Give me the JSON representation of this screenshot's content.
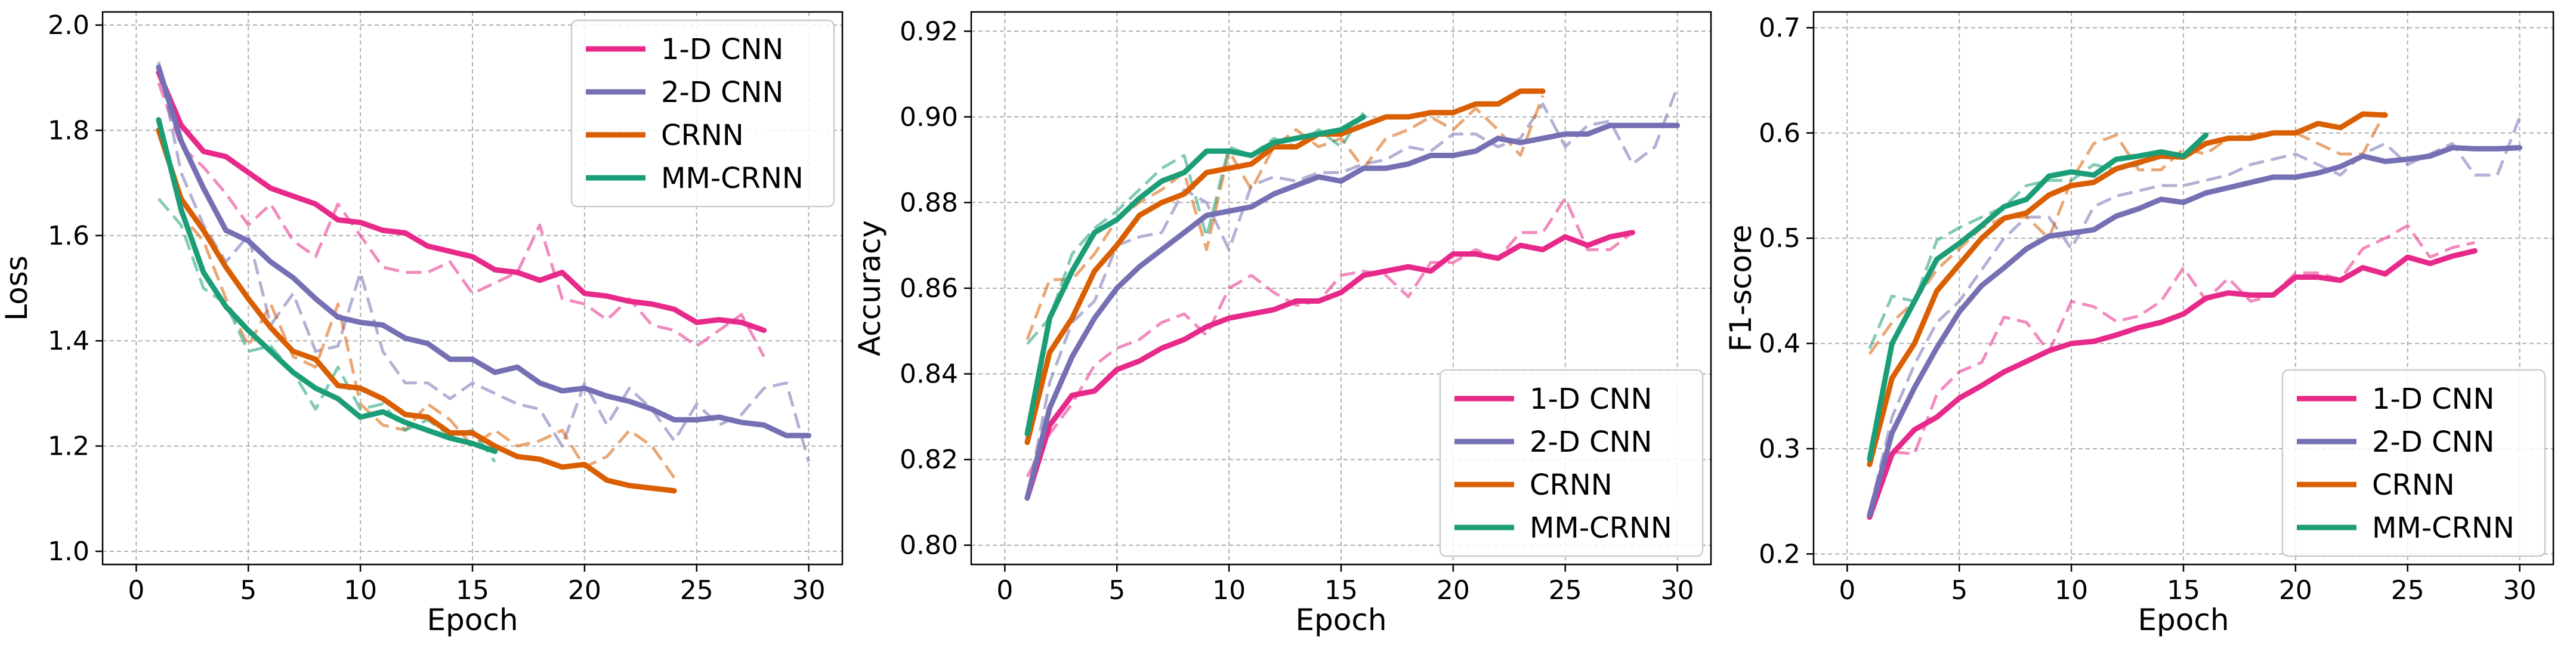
{
  "chart_data": [
    {
      "type": "line",
      "xlabel": "Epoch",
      "ylabel": "Loss",
      "xlim": [
        -1.5,
        31.5
      ],
      "ylim": [
        0.975,
        2.025
      ],
      "xticks": [
        0,
        5,
        10,
        15,
        20,
        25,
        30
      ],
      "yticks": [
        1.0,
        1.2,
        1.4,
        1.6,
        1.8,
        2.0
      ],
      "ytick_labels": [
        "1.0",
        "1.2",
        "1.4",
        "1.6",
        "1.8",
        "2.0"
      ],
      "grid": true,
      "legend_position": "upper-right",
      "series": [
        {
          "name": "1-D CNN",
          "color": "#e7298a",
          "style": "smoothed-solid",
          "values": [
            1.91,
            1.81,
            1.76,
            1.75,
            1.72,
            1.69,
            1.675,
            1.66,
            1.63,
            1.625,
            1.61,
            1.605,
            1.58,
            1.57,
            1.56,
            1.535,
            1.53,
            1.515,
            1.53,
            1.49,
            1.485,
            1.475,
            1.47,
            1.46,
            1.435,
            1.44,
            1.435,
            1.42
          ]
        },
        {
          "name": "1-D CNN raw",
          "color": "#e7298a",
          "style": "raw-dashed",
          "values": [
            1.89,
            1.77,
            1.73,
            1.68,
            1.62,
            1.66,
            1.59,
            1.56,
            1.66,
            1.6,
            1.54,
            1.53,
            1.53,
            1.55,
            1.49,
            1.51,
            1.53,
            1.62,
            1.48,
            1.47,
            1.44,
            1.48,
            1.43,
            1.42,
            1.39,
            1.42,
            1.45,
            1.37
          ]
        },
        {
          "name": "2-D CNN",
          "color": "#7570b3",
          "style": "smoothed-solid",
          "values": [
            1.92,
            1.78,
            1.69,
            1.61,
            1.59,
            1.55,
            1.52,
            1.48,
            1.445,
            1.435,
            1.43,
            1.405,
            1.395,
            1.365,
            1.365,
            1.34,
            1.35,
            1.32,
            1.305,
            1.31,
            1.295,
            1.285,
            1.27,
            1.25,
            1.25,
            1.255,
            1.245,
            1.24,
            1.22,
            1.22
          ]
        },
        {
          "name": "2-D CNN raw",
          "color": "#7570b3",
          "style": "raw-dashed",
          "values": [
            1.93,
            1.72,
            1.62,
            1.55,
            1.6,
            1.43,
            1.49,
            1.38,
            1.39,
            1.53,
            1.38,
            1.32,
            1.32,
            1.29,
            1.32,
            1.3,
            1.28,
            1.27,
            1.2,
            1.32,
            1.24,
            1.31,
            1.27,
            1.21,
            1.28,
            1.24,
            1.26,
            1.31,
            1.32,
            1.17
          ]
        },
        {
          "name": "CRNN",
          "color": "#d95f02",
          "style": "smoothed-solid",
          "values": [
            1.8,
            1.67,
            1.61,
            1.54,
            1.48,
            1.425,
            1.38,
            1.365,
            1.315,
            1.31,
            1.29,
            1.26,
            1.255,
            1.225,
            1.225,
            1.2,
            1.18,
            1.175,
            1.16,
            1.165,
            1.135,
            1.125,
            1.12,
            1.115
          ]
        },
        {
          "name": "CRNN raw",
          "color": "#d95f02",
          "style": "raw-dashed",
          "values": [
            1.82,
            1.64,
            1.59,
            1.48,
            1.39,
            1.47,
            1.37,
            1.35,
            1.47,
            1.28,
            1.24,
            1.23,
            1.28,
            1.25,
            1.2,
            1.23,
            1.2,
            1.21,
            1.23,
            1.16,
            1.18,
            1.23,
            1.2,
            1.14
          ]
        },
        {
          "name": "MM-CRNN",
          "color": "#1b9e77",
          "style": "smoothed-solid",
          "values": [
            1.82,
            1.65,
            1.53,
            1.465,
            1.42,
            1.38,
            1.34,
            1.31,
            1.29,
            1.255,
            1.265,
            1.245,
            1.23,
            1.215,
            1.205,
            1.19
          ]
        },
        {
          "name": "MM-CRNN raw",
          "color": "#1b9e77",
          "style": "raw-dashed",
          "values": [
            1.67,
            1.62,
            1.5,
            1.47,
            1.38,
            1.39,
            1.34,
            1.27,
            1.35,
            1.27,
            1.28,
            1.23,
            1.25,
            1.22,
            1.23,
            1.17
          ]
        }
      ]
    },
    {
      "type": "line",
      "xlabel": "Epoch",
      "ylabel": "Accuracy",
      "xlim": [
        -1.5,
        31.5
      ],
      "ylim": [
        0.7955,
        0.9245
      ],
      "xticks": [
        0,
        5,
        10,
        15,
        20,
        25,
        30
      ],
      "yticks": [
        0.8,
        0.82,
        0.84,
        0.86,
        0.88,
        0.9,
        0.92
      ],
      "ytick_labels": [
        "0.80",
        "0.82",
        "0.84",
        "0.86",
        "0.88",
        "0.90",
        "0.92"
      ],
      "grid": true,
      "legend_position": "lower-right",
      "series": [
        {
          "name": "1-D CNN",
          "color": "#e7298a",
          "style": "smoothed-solid",
          "values": [
            0.811,
            0.828,
            0.835,
            0.836,
            0.841,
            0.843,
            0.846,
            0.848,
            0.851,
            0.853,
            0.854,
            0.855,
            0.857,
            0.857,
            0.859,
            0.863,
            0.864,
            0.865,
            0.864,
            0.868,
            0.868,
            0.867,
            0.87,
            0.869,
            0.872,
            0.87,
            0.872,
            0.873
          ]
        },
        {
          "name": "1-D CNN raw",
          "color": "#e7298a",
          "style": "raw-dashed",
          "values": [
            0.816,
            0.826,
            0.833,
            0.842,
            0.846,
            0.848,
            0.852,
            0.854,
            0.849,
            0.86,
            0.863,
            0.859,
            0.856,
            0.857,
            0.863,
            0.864,
            0.863,
            0.858,
            0.866,
            0.866,
            0.869,
            0.867,
            0.873,
            0.873,
            0.881,
            0.869,
            0.869,
            0.873
          ]
        },
        {
          "name": "2-D CNN",
          "color": "#7570b3",
          "style": "smoothed-solid",
          "values": [
            0.811,
            0.832,
            0.844,
            0.853,
            0.86,
            0.865,
            0.869,
            0.873,
            0.877,
            0.878,
            0.879,
            0.882,
            0.884,
            0.886,
            0.885,
            0.888,
            0.888,
            0.889,
            0.891,
            0.891,
            0.892,
            0.895,
            0.894,
            0.895,
            0.896,
            0.896,
            0.898,
            0.898,
            0.898,
            0.898
          ]
        },
        {
          "name": "2-D CNN raw",
          "color": "#7570b3",
          "style": "raw-dashed",
          "values": [
            0.811,
            0.838,
            0.852,
            0.857,
            0.87,
            0.872,
            0.873,
            0.883,
            0.88,
            0.869,
            0.884,
            0.886,
            0.885,
            0.887,
            0.887,
            0.889,
            0.89,
            0.893,
            0.892,
            0.896,
            0.896,
            0.893,
            0.895,
            0.903,
            0.893,
            0.898,
            0.899,
            0.889,
            0.893,
            0.907
          ]
        },
        {
          "name": "CRNN",
          "color": "#d95f02",
          "style": "smoothed-solid",
          "values": [
            0.824,
            0.845,
            0.853,
            0.864,
            0.87,
            0.877,
            0.88,
            0.882,
            0.887,
            0.888,
            0.889,
            0.893,
            0.893,
            0.896,
            0.896,
            0.898,
            0.9,
            0.9,
            0.901,
            0.901,
            0.903,
            0.903,
            0.906,
            0.906
          ]
        },
        {
          "name": "CRNN raw",
          "color": "#d95f02",
          "style": "raw-dashed",
          "values": [
            0.848,
            0.862,
            0.862,
            0.868,
            0.876,
            0.88,
            0.883,
            0.887,
            0.869,
            0.892,
            0.883,
            0.893,
            0.897,
            0.893,
            0.895,
            0.888,
            0.895,
            0.897,
            0.9,
            0.897,
            0.902,
            0.897,
            0.891,
            0.905
          ]
        },
        {
          "name": "MM-CRNN",
          "color": "#1b9e77",
          "style": "smoothed-solid",
          "values": [
            0.826,
            0.853,
            0.864,
            0.873,
            0.876,
            0.881,
            0.885,
            0.887,
            0.892,
            0.892,
            0.891,
            0.894,
            0.895,
            0.896,
            0.897,
            0.9
          ]
        },
        {
          "name": "MM-CRNN raw",
          "color": "#1b9e77",
          "style": "raw-dashed",
          "values": [
            0.847,
            0.853,
            0.868,
            0.874,
            0.878,
            0.883,
            0.888,
            0.891,
            0.872,
            0.893,
            0.891,
            0.895,
            0.893,
            0.897,
            0.893,
            0.901
          ]
        }
      ]
    },
    {
      "type": "line",
      "xlabel": "Epoch",
      "ylabel": "F1-score",
      "xlim": [
        -1.5,
        31.5
      ],
      "ylim": [
        0.19,
        0.715
      ],
      "xticks": [
        0,
        5,
        10,
        15,
        20,
        25,
        30
      ],
      "yticks": [
        0.2,
        0.3,
        0.4,
        0.5,
        0.6,
        0.7
      ],
      "ytick_labels": [
        "0.2",
        "0.3",
        "0.4",
        "0.5",
        "0.6",
        "0.7"
      ],
      "grid": true,
      "legend_position": "lower-right",
      "series": [
        {
          "name": "1-D CNN",
          "color": "#e7298a",
          "style": "smoothed-solid",
          "values": [
            0.235,
            0.295,
            0.318,
            0.33,
            0.348,
            0.36,
            0.373,
            0.383,
            0.393,
            0.4,
            0.402,
            0.408,
            0.415,
            0.42,
            0.428,
            0.443,
            0.448,
            0.446,
            0.446,
            0.463,
            0.463,
            0.46,
            0.472,
            0.466,
            0.482,
            0.476,
            0.483,
            0.488
          ]
        },
        {
          "name": "1-D CNN raw",
          "color": "#e7298a",
          "style": "raw-dashed",
          "values": [
            0.238,
            0.297,
            0.295,
            0.352,
            0.373,
            0.382,
            0.425,
            0.42,
            0.392,
            0.44,
            0.435,
            0.421,
            0.426,
            0.44,
            0.472,
            0.441,
            0.462,
            0.44,
            0.446,
            0.467,
            0.467,
            0.461,
            0.49,
            0.5,
            0.512,
            0.482,
            0.491,
            0.496
          ]
        },
        {
          "name": "2-D CNN",
          "color": "#7570b3",
          "style": "smoothed-solid",
          "values": [
            0.237,
            0.315,
            0.358,
            0.396,
            0.43,
            0.455,
            0.472,
            0.49,
            0.502,
            0.505,
            0.508,
            0.521,
            0.528,
            0.537,
            0.534,
            0.543,
            0.548,
            0.553,
            0.558,
            0.558,
            0.562,
            0.568,
            0.578,
            0.573,
            0.575,
            0.578,
            0.586,
            0.585,
            0.585,
            0.586
          ]
        },
        {
          "name": "2-D CNN raw",
          "color": "#7570b3",
          "style": "raw-dashed",
          "values": [
            0.24,
            0.33,
            0.38,
            0.42,
            0.44,
            0.47,
            0.5,
            0.52,
            0.52,
            0.49,
            0.53,
            0.54,
            0.545,
            0.55,
            0.55,
            0.555,
            0.56,
            0.57,
            0.575,
            0.58,
            0.57,
            0.56,
            0.58,
            0.59,
            0.57,
            0.58,
            0.59,
            0.56,
            0.56,
            0.615
          ]
        },
        {
          "name": "CRNN",
          "color": "#d95f02",
          "style": "smoothed-solid",
          "values": [
            0.285,
            0.367,
            0.4,
            0.45,
            0.475,
            0.5,
            0.519,
            0.524,
            0.541,
            0.55,
            0.553,
            0.566,
            0.572,
            0.578,
            0.577,
            0.59,
            0.595,
            0.595,
            0.6,
            0.6,
            0.609,
            0.605,
            0.618,
            0.617
          ]
        },
        {
          "name": "CRNN raw",
          "color": "#d95f02",
          "style": "raw-dashed",
          "values": [
            0.39,
            0.42,
            0.44,
            0.47,
            0.49,
            0.51,
            0.52,
            0.52,
            0.5,
            0.555,
            0.59,
            0.598,
            0.565,
            0.565,
            0.585,
            0.58,
            0.595,
            0.598,
            0.6,
            0.6,
            0.59,
            0.58,
            0.58,
            0.62
          ]
        },
        {
          "name": "MM-CRNN",
          "color": "#1b9e77",
          "style": "smoothed-solid",
          "values": [
            0.29,
            0.4,
            0.44,
            0.48,
            0.495,
            0.512,
            0.53,
            0.537,
            0.559,
            0.563,
            0.56,
            0.575,
            0.578,
            0.582,
            0.578,
            0.598
          ]
        },
        {
          "name": "MM-CRNN raw",
          "color": "#1b9e77",
          "style": "raw-dashed",
          "values": [
            0.395,
            0.445,
            0.44,
            0.498,
            0.51,
            0.52,
            0.53,
            0.55,
            0.555,
            0.555,
            0.57,
            0.565,
            0.57,
            0.58,
            0.577,
            0.6
          ]
        }
      ]
    }
  ]
}
